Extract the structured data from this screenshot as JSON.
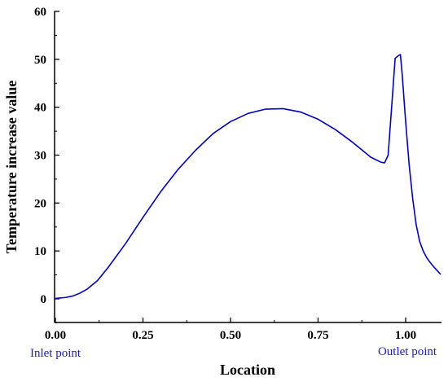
{
  "chart_data": {
    "type": "line",
    "title": "",
    "xlabel": "Location",
    "ylabel": "Temperature increase value",
    "xlim": [
      -0.005,
      1.1
    ],
    "ylim": [
      -5,
      60
    ],
    "x_ticks": [
      0.0,
      0.25,
      0.5,
      0.75,
      1.0
    ],
    "x_tick_labels": [
      "0.00",
      "0.25",
      "0.50",
      "0.75",
      "1.00"
    ],
    "y_ticks": [
      0,
      10,
      20,
      30,
      40,
      50,
      60
    ],
    "y_tick_labels": [
      "0",
      "10",
      "20",
      "30",
      "40",
      "50",
      "60"
    ],
    "annotations": [
      {
        "text": "Inlet point",
        "x": 0.0
      },
      {
        "text": "Outlet point",
        "x": 1.0
      }
    ],
    "grid": false,
    "series": [
      {
        "color": "#0000cc",
        "x": [
          0.0,
          0.03,
          0.05,
          0.07,
          0.09,
          0.12,
          0.15,
          0.2,
          0.25,
          0.3,
          0.35,
          0.4,
          0.45,
          0.5,
          0.55,
          0.6,
          0.65,
          0.7,
          0.75,
          0.8,
          0.85,
          0.9,
          0.93,
          0.94,
          0.95,
          0.96,
          0.97,
          0.98,
          0.985,
          0.99,
          1.0,
          1.01,
          1.02,
          1.03,
          1.04,
          1.05,
          1.06,
          1.07,
          1.08,
          1.09,
          1.1
        ],
        "y": [
          0.1,
          0.3,
          0.6,
          1.2,
          2.0,
          3.8,
          6.5,
          11.5,
          17.0,
          22.3,
          27.0,
          31.0,
          34.5,
          37.0,
          38.7,
          39.6,
          39.7,
          39.0,
          37.5,
          35.3,
          32.6,
          29.6,
          28.5,
          28.4,
          30.0,
          40.0,
          50.2,
          50.8,
          51.0,
          47.0,
          37.0,
          28.0,
          21.0,
          15.5,
          12.0,
          10.0,
          8.6,
          7.6,
          6.7,
          5.9,
          5.1
        ]
      }
    ]
  }
}
